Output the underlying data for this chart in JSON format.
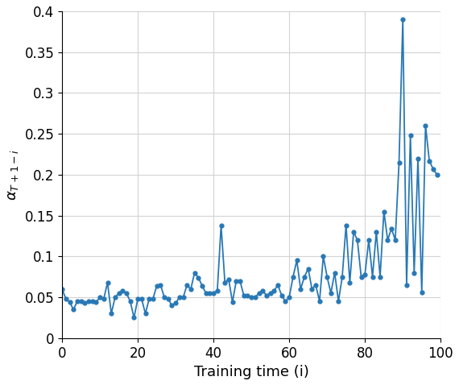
{
  "x": [
    0,
    1,
    2,
    3,
    4,
    5,
    6,
    7,
    8,
    9,
    10,
    11,
    12,
    13,
    14,
    15,
    16,
    17,
    18,
    19,
    20,
    21,
    22,
    23,
    24,
    25,
    26,
    27,
    28,
    29,
    30,
    31,
    32,
    33,
    34,
    35,
    36,
    37,
    38,
    39,
    40,
    41,
    42,
    43,
    44,
    45,
    46,
    47,
    48,
    49,
    50,
    51,
    52,
    53,
    54,
    55,
    56,
    57,
    58,
    59,
    60,
    61,
    62,
    63,
    64,
    65,
    66,
    67,
    68,
    69,
    70,
    71,
    72,
    73,
    74,
    75,
    76,
    77,
    78,
    79,
    80,
    81,
    82,
    83,
    84,
    85,
    86,
    87,
    88,
    89,
    90,
    91,
    92,
    93,
    94,
    95,
    96,
    97,
    98,
    99
  ],
  "y": [
    0.06,
    0.048,
    0.044,
    0.035,
    0.045,
    0.045,
    0.043,
    0.045,
    0.045,
    0.044,
    0.05,
    0.048,
    0.068,
    0.03,
    0.05,
    0.055,
    0.058,
    0.055,
    0.045,
    0.025,
    0.048,
    0.048,
    0.03,
    0.048,
    0.048,
    0.064,
    0.065,
    0.05,
    0.048,
    0.04,
    0.043,
    0.05,
    0.05,
    0.065,
    0.06,
    0.08,
    0.074,
    0.064,
    0.055,
    0.055,
    0.055,
    0.058,
    0.138,
    0.068,
    0.072,
    0.044,
    0.07,
    0.07,
    0.052,
    0.052,
    0.05,
    0.05,
    0.055,
    0.058,
    0.052,
    0.055,
    0.058,
    0.065,
    0.052,
    0.045,
    0.05,
    0.075,
    0.095,
    0.06,
    0.075,
    0.085,
    0.06,
    0.065,
    0.045,
    0.1,
    0.075,
    0.055,
    0.08,
    0.045,
    0.075,
    0.138,
    0.068,
    0.13,
    0.12,
    0.075,
    0.078,
    0.12,
    0.075,
    0.13,
    0.075,
    0.155,
    0.12,
    0.134,
    0.12,
    0.215,
    0.39,
    0.065,
    0.248,
    0.08,
    0.22,
    0.056,
    0.26,
    0.217,
    0.207,
    0.2
  ],
  "line_color": "#2878b5",
  "marker": "o",
  "markersize": 3.5,
  "linewidth": 1.3,
  "xlabel": "Training time (i)",
  "xlim": [
    0,
    100
  ],
  "ylim": [
    0,
    0.4
  ],
  "yticks": [
    0,
    0.05,
    0.1,
    0.15,
    0.2,
    0.25,
    0.3,
    0.35,
    0.4
  ],
  "xticks": [
    0,
    20,
    40,
    60,
    80,
    100
  ],
  "grid": true,
  "figsize": [
    5.7,
    4.78
  ],
  "dpi": 100,
  "tick_fontsize": 12,
  "label_fontsize": 13
}
